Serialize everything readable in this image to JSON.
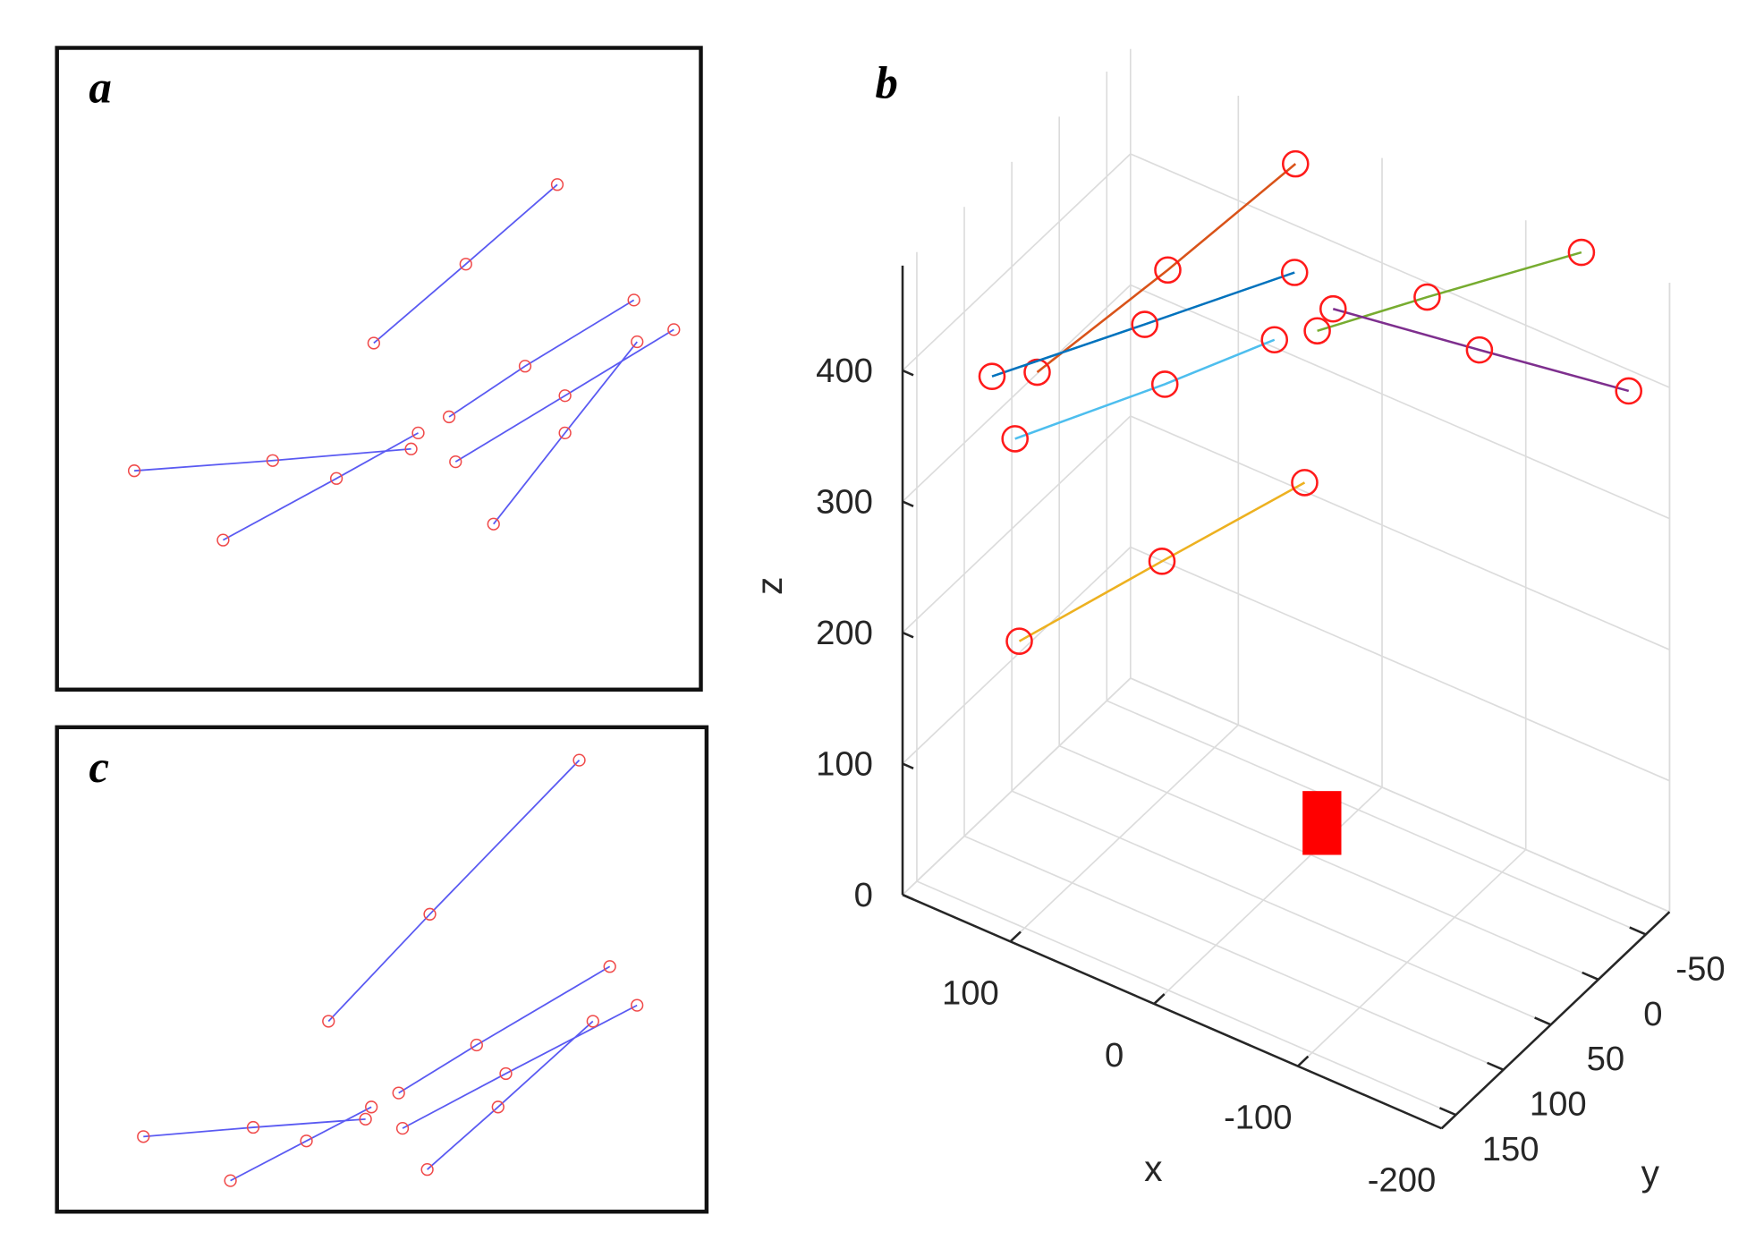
{
  "chart_data": [
    {
      "type": "line",
      "title": "a",
      "xlim": [
        0,
        100
      ],
      "ylim": [
        0,
        100
      ],
      "color": "#5a5af2",
      "marker_color": "#f04a4a",
      "series": [
        {
          "x": [
            49.2,
            63.5,
            77.7
          ],
          "values": [
            54.0,
            66.3,
            78.7
          ]
        },
        {
          "x": [
            12.0,
            33.5,
            55.0
          ],
          "values": [
            34.1,
            35.7,
            37.5
          ]
        },
        {
          "x": [
            25.8,
            43.4,
            56.1
          ],
          "values": [
            23.3,
            32.9,
            40.0
          ]
        },
        {
          "x": [
            60.9,
            72.7,
            89.6
          ],
          "values": [
            42.5,
            50.4,
            60.7
          ]
        },
        {
          "x": [
            61.9,
            78.9,
            95.8
          ],
          "values": [
            35.5,
            45.8,
            56.1
          ]
        },
        {
          "x": [
            67.8,
            78.9,
            90.1
          ],
          "values": [
            25.8,
            40.0,
            54.2
          ]
        }
      ]
    },
    {
      "type": "line3d",
      "title": "b",
      "xlabel": "x",
      "ylabel": "y",
      "zlabel": "z",
      "xlim": [
        -200,
        175
      ],
      "ylim": [
        -75,
        165
      ],
      "zlim": [
        0,
        480
      ],
      "xticks": [
        -200,
        -100,
        0,
        100
      ],
      "yticks": [
        -50,
        0,
        50,
        100,
        150
      ],
      "zticks": [
        0,
        100,
        200,
        300,
        400
      ],
      "grid": true,
      "marker_color": "#ff1a1a",
      "series": [
        {
          "color": "#d95319",
          "x": [
            121,
            83,
            47
          ],
          "y": [
            105,
            25,
            -55
          ],
          "z": [
            383,
            424,
            467
          ]
        },
        {
          "color": "#0072bd",
          "x": [
            126,
            66,
            8
          ],
          "y": [
            145,
            75,
            5
          ],
          "z": [
            405,
            425,
            444
          ]
        },
        {
          "color": "#4dbeee",
          "x": [
            110,
            52,
            22
          ],
          "y": [
            145,
            75,
            5
          ],
          "z": [
            365,
            386,
            386
          ]
        },
        {
          "color": "#edb120",
          "x": [
            107,
            54,
            1
          ],
          "y": [
            145,
            75,
            5
          ],
          "z": [
            212,
            250,
            287
          ]
        },
        {
          "color": "#77ac30",
          "x": [
            -21,
            -71,
            -142
          ],
          "y": [
            25,
            -15,
            -70
          ],
          "z": [
            427,
            449,
            479
          ]
        },
        {
          "color": "#7e2f8e",
          "x": [
            -32,
            -114,
            -198
          ],
          "y": [
            25,
            -5,
            -35
          ],
          "z": [
            449,
            436,
            424
          ]
        }
      ]
    },
    {
      "type": "line",
      "title": "c",
      "xlim": [
        0,
        100
      ],
      "ylim": [
        0,
        100
      ],
      "color": "#5a5af2",
      "marker_color": "#f04a4a",
      "series": [
        {
          "x": [
            41.8,
            57.4,
            80.4
          ],
          "values": [
            39.3,
            61.4,
            93.2
          ]
        },
        {
          "x": [
            13.3,
            30.2,
            47.5
          ],
          "values": [
            15.5,
            17.4,
            19.1
          ]
        },
        {
          "x": [
            26.7,
            38.4,
            48.4
          ],
          "values": [
            6.4,
            14.6,
            21.6
          ]
        },
        {
          "x": [
            52.6,
            64.6,
            85.1
          ],
          "values": [
            24.5,
            34.4,
            50.6
          ]
        },
        {
          "x": [
            53.2,
            69.1,
            89.3
          ],
          "values": [
            17.2,
            28.5,
            42.6
          ]
        },
        {
          "x": [
            57.0,
            67.9,
            82.5
          ],
          "values": [
            8.7,
            21.6,
            39.3
          ]
        }
      ]
    }
  ]
}
